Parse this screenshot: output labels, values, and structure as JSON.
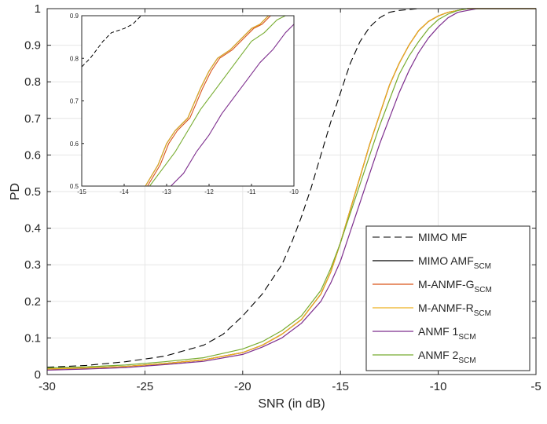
{
  "chart_data": [
    {
      "type": "line",
      "panel": "main",
      "xlabel": "SNR (in dB)",
      "ylabel": "PD",
      "xlim": [
        -30,
        -5
      ],
      "ylim": [
        0,
        1
      ],
      "xticks": [
        -30,
        -25,
        -20,
        -15,
        -10,
        -5
      ],
      "yticks": [
        0,
        0.1,
        0.2,
        0.3,
        0.4,
        0.5,
        0.6,
        0.7,
        0.8,
        0.9,
        1
      ],
      "xtick_labels": [
        "-30",
        "-25",
        "-20",
        "-15",
        "-10",
        "-5"
      ],
      "ytick_labels": [
        "0",
        "0.1",
        "0.2",
        "0.3",
        "0.4",
        "0.5",
        "0.6",
        "0.7",
        "0.8",
        "0.9",
        "1"
      ],
      "grid": true,
      "legend_position": "bottom-right",
      "series": [
        {
          "name": "MIMO MF",
          "name_sub": "",
          "color": "#000000",
          "dash": "9,5",
          "width": 1.1,
          "x": [
            -30,
            -28,
            -26,
            -24,
            -22,
            -21,
            -20,
            -19,
            -18,
            -17.5,
            -17,
            -16.5,
            -16,
            -15.5,
            -15,
            -14.5,
            -14,
            -13.5,
            -13,
            -12.5,
            -12,
            -11,
            -10,
            -5
          ],
          "y": [
            0.02,
            0.025,
            0.035,
            0.05,
            0.08,
            0.11,
            0.16,
            0.22,
            0.3,
            0.36,
            0.43,
            0.51,
            0.6,
            0.69,
            0.77,
            0.85,
            0.91,
            0.95,
            0.975,
            0.99,
            0.995,
            1,
            1,
            1
          ]
        },
        {
          "name": "MIMO AMF",
          "name_sub": "SCM",
          "color": "#000000",
          "dash": "",
          "width": 1.2,
          "x": [
            -30,
            -28,
            -26,
            -24,
            -22,
            -20,
            -19,
            -18,
            -17,
            -16,
            -15.5,
            -15,
            -14.5,
            -14,
            -13.5,
            -13,
            -12.5,
            -12,
            -11.5,
            -11,
            -10.5,
            -10,
            -9.5,
            -9,
            -8.5,
            -8,
            -7,
            -5
          ],
          "y": [
            0.015,
            0.018,
            0.022,
            0.03,
            0.04,
            0.06,
            0.08,
            0.11,
            0.15,
            0.22,
            0.28,
            0.36,
            0.45,
            0.54,
            0.63,
            0.71,
            0.79,
            0.85,
            0.9,
            0.94,
            0.965,
            0.98,
            0.99,
            0.995,
            1,
            1,
            1,
            1
          ]
        },
        {
          "name": "M-ANMF-G",
          "name_sub": "SCM",
          "color": "#d95319",
          "dash": "",
          "width": 1.2,
          "x": [
            -30,
            -28,
            -26,
            -24,
            -22,
            -20,
            -19,
            -18,
            -17,
            -16,
            -15.5,
            -15,
            -14.5,
            -14,
            -13.5,
            -13,
            -12.5,
            -12,
            -11.5,
            -11,
            -10.5,
            -10,
            -9.5,
            -9,
            -8.5,
            -8,
            -7,
            -5
          ],
          "y": [
            0.015,
            0.018,
            0.022,
            0.03,
            0.04,
            0.06,
            0.08,
            0.11,
            0.15,
            0.22,
            0.28,
            0.36,
            0.45,
            0.54,
            0.63,
            0.71,
            0.79,
            0.85,
            0.9,
            0.94,
            0.965,
            0.98,
            0.99,
            0.995,
            1,
            1,
            1,
            1
          ]
        },
        {
          "name": "M-ANMF-R",
          "name_sub": "SCM",
          "color": "#edb120",
          "dash": "",
          "width": 1.2,
          "x": [
            -30,
            -28,
            -26,
            -24,
            -22,
            -20,
            -19,
            -18,
            -17,
            -16,
            -15.5,
            -15,
            -14.5,
            -14,
            -13.5,
            -13,
            -12.5,
            -12,
            -11.5,
            -11,
            -10.5,
            -10,
            -9.5,
            -9,
            -8.5,
            -8,
            -7,
            -5
          ],
          "y": [
            0.015,
            0.018,
            0.022,
            0.03,
            0.04,
            0.06,
            0.08,
            0.11,
            0.15,
            0.22,
            0.28,
            0.36,
            0.45,
            0.54,
            0.63,
            0.71,
            0.79,
            0.85,
            0.9,
            0.94,
            0.965,
            0.98,
            0.99,
            0.995,
            1,
            1,
            1,
            1
          ]
        },
        {
          "name": "ANMF 1",
          "name_sub": "SCM",
          "color": "#7e2f8e",
          "dash": "",
          "width": 1.2,
          "x": [
            -30,
            -28,
            -26,
            -24,
            -22,
            -20,
            -19,
            -18,
            -17,
            -16,
            -15.5,
            -15,
            -14.5,
            -14,
            -13.5,
            -13,
            -12.5,
            -12,
            -11.5,
            -11,
            -10.5,
            -10,
            -9.5,
            -9,
            -8.5,
            -8,
            -7,
            -5
          ],
          "y": [
            0.012,
            0.015,
            0.019,
            0.027,
            0.036,
            0.055,
            0.075,
            0.1,
            0.14,
            0.2,
            0.25,
            0.31,
            0.39,
            0.47,
            0.55,
            0.63,
            0.7,
            0.77,
            0.83,
            0.88,
            0.92,
            0.95,
            0.975,
            0.99,
            0.995,
            1,
            1,
            1
          ]
        },
        {
          "name": "ANMF 2",
          "name_sub": "SCM",
          "color": "#77ac30",
          "dash": "",
          "width": 1.2,
          "x": [
            -30,
            -28,
            -26,
            -24,
            -22,
            -20,
            -19,
            -18,
            -17,
            -16,
            -15.5,
            -15,
            -14.5,
            -14,
            -13.5,
            -13,
            -12.5,
            -12,
            -11.5,
            -11,
            -10.5,
            -10,
            -9.5,
            -9,
            -8.5,
            -8,
            -7,
            -5
          ],
          "y": [
            0.018,
            0.021,
            0.026,
            0.035,
            0.046,
            0.07,
            0.09,
            0.12,
            0.16,
            0.23,
            0.29,
            0.36,
            0.44,
            0.52,
            0.6,
            0.68,
            0.75,
            0.82,
            0.87,
            0.91,
            0.945,
            0.97,
            0.985,
            0.995,
            1,
            1,
            1,
            1
          ]
        }
      ]
    },
    {
      "type": "line",
      "panel": "inset",
      "xlim": [
        -15,
        -10
      ],
      "ylim": [
        0.5,
        0.9
      ],
      "xticks": [
        -15,
        -14,
        -13,
        -12,
        -11,
        -10
      ],
      "yticks": [
        0.5,
        0.6,
        0.7,
        0.8,
        0.9
      ],
      "xtick_labels": [
        "-15",
        "-14",
        "-13",
        "-12",
        "-11",
        "-10"
      ],
      "ytick_labels": [
        "0.5",
        "0.6",
        "0.7",
        "0.8",
        "0.9"
      ],
      "grid": false,
      "series": [
        {
          "name": "MIMO MF",
          "color": "#000000",
          "dash": "5,3",
          "width": 1.0,
          "x": [
            -15,
            -14.8,
            -14.5,
            -14.3,
            -14,
            -13.8,
            -13.6
          ],
          "y": [
            0.78,
            0.8,
            0.84,
            0.86,
            0.87,
            0.88,
            0.9
          ]
        },
        {
          "name": "MIMO AMF",
          "color": "#000000",
          "dash": "",
          "width": 1.1,
          "x": [
            -13.5,
            -13.2,
            -13,
            -12.8,
            -12.5,
            -12.2,
            -12,
            -11.8,
            -11.5,
            -11.2,
            -11,
            -10.8,
            -10.6
          ],
          "y": [
            0.5,
            0.55,
            0.6,
            0.63,
            0.66,
            0.73,
            0.77,
            0.8,
            0.82,
            0.85,
            0.87,
            0.88,
            0.9
          ]
        },
        {
          "name": "M-ANMF-G",
          "color": "#d95319",
          "dash": "",
          "width": 1.1,
          "x": [
            -13.45,
            -13.15,
            -12.95,
            -12.75,
            -12.45,
            -12.15,
            -11.95,
            -11.75,
            -11.45,
            -11.15,
            -10.95,
            -10.75,
            -10.55
          ],
          "y": [
            0.5,
            0.55,
            0.6,
            0.63,
            0.66,
            0.73,
            0.77,
            0.8,
            0.82,
            0.85,
            0.87,
            0.88,
            0.9
          ]
        },
        {
          "name": "M-ANMF-R",
          "color": "#edb120",
          "dash": "",
          "width": 1.1,
          "x": [
            -13.5,
            -13.2,
            -13,
            -12.8,
            -12.5,
            -12.2,
            -12,
            -11.8,
            -11.5,
            -11.2,
            -11,
            -10.8,
            -10.6
          ],
          "y": [
            0.5,
            0.55,
            0.6,
            0.63,
            0.66,
            0.73,
            0.77,
            0.8,
            0.82,
            0.85,
            0.87,
            0.88,
            0.9
          ]
        },
        {
          "name": "ANMF 1",
          "color": "#7e2f8e",
          "dash": "",
          "width": 1.1,
          "x": [
            -12.9,
            -12.6,
            -12.3,
            -12,
            -11.7,
            -11.4,
            -11.1,
            -10.8,
            -10.5,
            -10.2,
            -10
          ],
          "y": [
            0.5,
            0.53,
            0.58,
            0.62,
            0.67,
            0.71,
            0.75,
            0.79,
            0.82,
            0.86,
            0.88
          ]
        },
        {
          "name": "ANMF 2",
          "color": "#77ac30",
          "dash": "",
          "width": 1.1,
          "x": [
            -13.4,
            -13.1,
            -12.8,
            -12.5,
            -12.2,
            -11.9,
            -11.6,
            -11.3,
            -11,
            -10.7,
            -10.4,
            -10.2
          ],
          "y": [
            0.5,
            0.54,
            0.58,
            0.63,
            0.68,
            0.72,
            0.76,
            0.8,
            0.84,
            0.86,
            0.89,
            0.9
          ]
        }
      ]
    }
  ]
}
